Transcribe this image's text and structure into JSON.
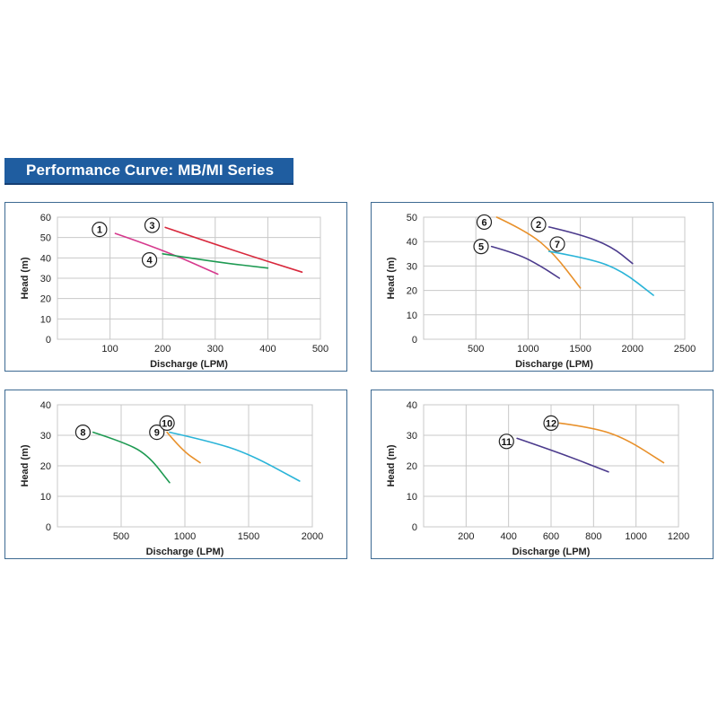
{
  "title": "Performance Curve: MB/MI Series",
  "colors": {
    "banner": "#1f5da0",
    "panel_border": "#3d6a92",
    "grid": "#c8c8c8",
    "magenta": "#d6398d",
    "red": "#d8283c",
    "green": "#1e9a52",
    "purple": "#4b3a8c",
    "orange": "#e8902a",
    "cyan": "#2ab4d8"
  },
  "chart_data": [
    {
      "type": "line",
      "xlabel": "Discharge (LPM)",
      "ylabel": "Head (m)",
      "xlim": [
        0,
        500
      ],
      "ylim": [
        0,
        60
      ],
      "xticks": [
        100,
        200,
        300,
        400,
        500
      ],
      "yticks": [
        0,
        10,
        20,
        30,
        40,
        50,
        60
      ],
      "grid": true,
      "series": [
        {
          "name": "1",
          "color": "magenta",
          "x": [
            110,
            200,
            305
          ],
          "y": [
            52,
            44,
            32
          ],
          "label_at": [
            80,
            54
          ]
        },
        {
          "name": "3",
          "color": "red",
          "x": [
            205,
            330,
            465
          ],
          "y": [
            55,
            44,
            33
          ],
          "label_at": [
            180,
            56
          ]
        },
        {
          "name": "4",
          "color": "green",
          "x": [
            200,
            300,
            400
          ],
          "y": [
            42,
            38,
            35
          ],
          "label_at": [
            175,
            39
          ]
        }
      ]
    },
    {
      "type": "line",
      "xlabel": "Discharge (LPM)",
      "ylabel": "Head (m)",
      "xlim": [
        0,
        2500
      ],
      "ylim": [
        0,
        50
      ],
      "xticks": [
        500,
        1000,
        1500,
        2000,
        2500
      ],
      "yticks": [
        0,
        10,
        20,
        30,
        40,
        50
      ],
      "grid": true,
      "series": [
        {
          "name": "5",
          "color": "purple",
          "x": [
            650,
            900,
            1120,
            1300
          ],
          "y": [
            38,
            35,
            30,
            25
          ],
          "label_at": [
            550,
            38
          ]
        },
        {
          "name": "6",
          "color": "orange",
          "x": [
            700,
            1000,
            1250,
            1500
          ],
          "y": [
            50,
            44,
            35,
            21
          ],
          "label_at": [
            580,
            48
          ]
        },
        {
          "name": "2",
          "color": "purple",
          "x": [
            1200,
            1500,
            1800,
            2000
          ],
          "y": [
            46,
            43,
            38,
            31
          ],
          "label_at": [
            1100,
            47
          ]
        },
        {
          "name": "7",
          "color": "cyan",
          "x": [
            1200,
            1600,
            1900,
            2200
          ],
          "y": [
            36,
            33,
            28,
            18
          ],
          "label_at": [
            1280,
            39
          ]
        }
      ]
    },
    {
      "type": "line",
      "xlabel": "Discharge (LPM)",
      "ylabel": "Head (m)",
      "xlim": [
        0,
        2000
      ],
      "ylim": [
        0,
        40
      ],
      "xticks": [
        500,
        1000,
        1500,
        2000
      ],
      "yticks": [
        0,
        10,
        20,
        30,
        40
      ],
      "grid": true,
      "series": [
        {
          "name": "8",
          "color": "green",
          "x": [
            280,
            500,
            700,
            880
          ],
          "y": [
            31,
            28,
            24,
            14.5
          ],
          "label_at": [
            200,
            31
          ]
        },
        {
          "name": "9",
          "color": "orange",
          "x": [
            860,
            980,
            1120
          ],
          "y": [
            31,
            25,
            21
          ],
          "label_at": [
            780,
            31
          ]
        },
        {
          "name": "10",
          "color": "cyan",
          "x": [
            880,
            1200,
            1500,
            1900
          ],
          "y": [
            31,
            28,
            24,
            15
          ],
          "label_at": [
            860,
            34
          ]
        }
      ]
    },
    {
      "type": "line",
      "xlabel": "Discharge (LPM)",
      "ylabel": "Head (m)",
      "xlim": [
        0,
        1200
      ],
      "ylim": [
        0,
        40
      ],
      "xticks": [
        200,
        400,
        600,
        800,
        1000,
        1200
      ],
      "yticks": [
        0,
        10,
        20,
        30,
        40
      ],
      "grid": true,
      "series": [
        {
          "name": "11",
          "color": "purple",
          "x": [
            440,
            650,
            870
          ],
          "y": [
            29,
            24,
            18
          ],
          "label_at": [
            390,
            28
          ]
        },
        {
          "name": "12",
          "color": "orange",
          "x": [
            640,
            800,
            950,
            1130
          ],
          "y": [
            34,
            32.5,
            29,
            21
          ],
          "label_at": [
            600,
            34
          ]
        }
      ]
    }
  ]
}
